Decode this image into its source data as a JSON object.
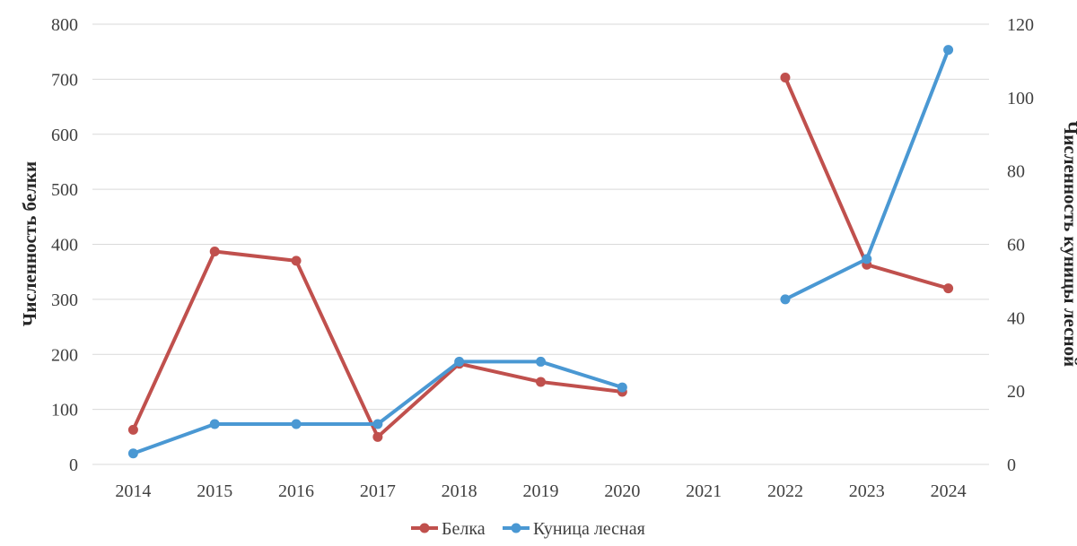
{
  "chart_data": {
    "type": "line",
    "categories": [
      "2014",
      "2015",
      "2016",
      "2017",
      "2018",
      "2019",
      "2020",
      "2021",
      "2022",
      "2023",
      "2024"
    ],
    "y_left": {
      "label": "Численность белки",
      "range": [
        0,
        800
      ],
      "ticks": [
        "0",
        "100",
        "200",
        "300",
        "400",
        "500",
        "600",
        "700",
        "800"
      ]
    },
    "y_right": {
      "label": "Численность куницы лесной",
      "range": [
        0,
        120
      ],
      "ticks": [
        "0",
        "20",
        "40",
        "60",
        "80",
        "100",
        "120"
      ]
    },
    "grid": true,
    "legend_position": "bottom",
    "series": [
      {
        "name": "Белка",
        "axis": "left",
        "color": "#c0504d",
        "values": [
          63,
          387,
          370,
          50,
          183,
          150,
          132,
          null,
          703,
          363,
          320
        ]
      },
      {
        "name": "Куница лесная",
        "axis": "right",
        "color": "#4a98d3",
        "values": [
          3,
          11,
          11,
          11,
          28,
          28,
          21,
          null,
          45,
          56,
          113
        ]
      }
    ]
  }
}
